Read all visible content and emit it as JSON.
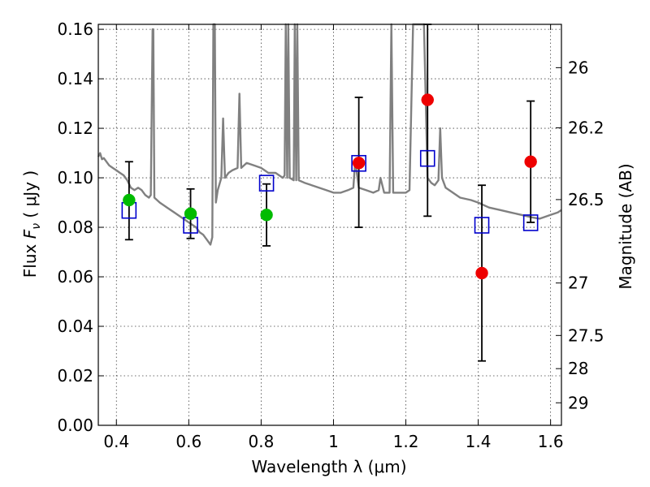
{
  "chart_data": {
    "type": "scatter",
    "xlabel": "Wavelength  λ (μm)",
    "ylabel": "Flux  F_ν  ( μJy )",
    "ylabel_prefix": "Flux  ",
    "ylabel_symbol": "F",
    "ylabel_subscript": "ν",
    "ylabel_units": "  ( μJy )",
    "y2label": "Magnitude (AB)",
    "xlim": [
      0.35,
      1.63
    ],
    "ylim": [
      0.0,
      0.162
    ],
    "x_ticks": [
      0.4,
      0.6,
      0.8,
      1.0,
      1.2,
      1.4,
      1.6
    ],
    "x_tick_labels": [
      "0.4",
      "0.6",
      "0.8",
      "1",
      "1.2",
      "1.4",
      "1.6"
    ],
    "y_ticks": [
      0.0,
      0.02,
      0.04,
      0.06,
      0.08,
      0.1,
      0.12,
      0.14,
      0.16
    ],
    "y_tick_labels": [
      "0.00",
      "0.02",
      "0.04",
      "0.06",
      "0.08",
      "0.10",
      "0.12",
      "0.14",
      "0.16"
    ],
    "y2_ticks": [
      {
        "label": "26",
        "flux": 0.1445
      },
      {
        "label": "26.2",
        "flux": 0.1202
      },
      {
        "label": "26.5",
        "flux": 0.0912
      },
      {
        "label": "27",
        "flux": 0.0575
      },
      {
        "label": "27.5",
        "flux": 0.0363
      },
      {
        "label": "28",
        "flux": 0.0229
      },
      {
        "label": "29",
        "flux": 0.0091
      }
    ],
    "colors": {
      "model": "#808080",
      "error_bar": "#000000",
      "model_photometry": "#0000cc",
      "optical_detection": "#00bb00",
      "nir_detection": "#ee0000"
    },
    "series": [
      {
        "name": "model spectrum",
        "style": "line",
        "points": [
          [
            0.35,
            0.1085
          ],
          [
            0.355,
            0.11
          ],
          [
            0.36,
            0.1075
          ],
          [
            0.365,
            0.108
          ],
          [
            0.37,
            0.107
          ],
          [
            0.38,
            0.105
          ],
          [
            0.39,
            0.104
          ],
          [
            0.4,
            0.103
          ],
          [
            0.41,
            0.102
          ],
          [
            0.42,
            0.101
          ],
          [
            0.43,
            0.099
          ],
          [
            0.44,
            0.096
          ],
          [
            0.45,
            0.095
          ],
          [
            0.46,
            0.096
          ],
          [
            0.47,
            0.095
          ],
          [
            0.48,
            0.093
          ],
          [
            0.49,
            0.092
          ],
          [
            0.495,
            0.093
          ],
          [
            0.5,
            0.16
          ],
          [
            0.502,
            0.16
          ],
          [
            0.505,
            0.092
          ],
          [
            0.52,
            0.09
          ],
          [
            0.54,
            0.088
          ],
          [
            0.56,
            0.086
          ],
          [
            0.58,
            0.084
          ],
          [
            0.6,
            0.082
          ],
          [
            0.61,
            0.081
          ],
          [
            0.62,
            0.08
          ],
          [
            0.63,
            0.078
          ],
          [
            0.64,
            0.077
          ],
          [
            0.65,
            0.075
          ],
          [
            0.655,
            0.074
          ],
          [
            0.66,
            0.073
          ],
          [
            0.665,
            0.076
          ],
          [
            0.668,
            0.162
          ],
          [
            0.672,
            0.162
          ],
          [
            0.675,
            0.09
          ],
          [
            0.68,
            0.095
          ],
          [
            0.69,
            0.1
          ],
          [
            0.695,
            0.124
          ],
          [
            0.7,
            0.1
          ],
          [
            0.71,
            0.102
          ],
          [
            0.72,
            0.103
          ],
          [
            0.735,
            0.104
          ],
          [
            0.74,
            0.134
          ],
          [
            0.745,
            0.104
          ],
          [
            0.76,
            0.106
          ],
          [
            0.78,
            0.105
          ],
          [
            0.8,
            0.104
          ],
          [
            0.82,
            0.102
          ],
          [
            0.84,
            0.102
          ],
          [
            0.86,
            0.1
          ],
          [
            0.865,
            0.101
          ],
          [
            0.868,
            0.162
          ],
          [
            0.872,
            0.1
          ],
          [
            0.875,
            0.162
          ],
          [
            0.879,
            0.1
          ],
          [
            0.89,
            0.099
          ],
          [
            0.893,
            0.162
          ],
          [
            0.897,
            0.099
          ],
          [
            0.9,
            0.162
          ],
          [
            0.904,
            0.099
          ],
          [
            0.92,
            0.098
          ],
          [
            0.94,
            0.097
          ],
          [
            0.96,
            0.096
          ],
          [
            0.98,
            0.095
          ],
          [
            1.0,
            0.094
          ],
          [
            1.02,
            0.094
          ],
          [
            1.04,
            0.095
          ],
          [
            1.055,
            0.096
          ],
          [
            1.06,
            0.107
          ],
          [
            1.07,
            0.096
          ],
          [
            1.09,
            0.095
          ],
          [
            1.11,
            0.094
          ],
          [
            1.125,
            0.095
          ],
          [
            1.13,
            0.1
          ],
          [
            1.14,
            0.094
          ],
          [
            1.155,
            0.094
          ],
          [
            1.16,
            0.162
          ],
          [
            1.165,
            0.094
          ],
          [
            1.18,
            0.094
          ],
          [
            1.2,
            0.094
          ],
          [
            1.21,
            0.095
          ],
          [
            1.22,
            0.162
          ],
          [
            1.25,
            0.162
          ],
          [
            1.26,
            0.1
          ],
          [
            1.27,
            0.098
          ],
          [
            1.28,
            0.097
          ],
          [
            1.29,
            0.099
          ],
          [
            1.295,
            0.12
          ],
          [
            1.3,
            0.1
          ],
          [
            1.31,
            0.096
          ],
          [
            1.33,
            0.094
          ],
          [
            1.35,
            0.092
          ],
          [
            1.38,
            0.091
          ],
          [
            1.4,
            0.09
          ],
          [
            1.43,
            0.088
          ],
          [
            1.46,
            0.087
          ],
          [
            1.49,
            0.086
          ],
          [
            1.52,
            0.085
          ],
          [
            1.55,
            0.084
          ],
          [
            1.57,
            0.0835
          ],
          [
            1.58,
            0.084
          ],
          [
            1.6,
            0.085
          ],
          [
            1.62,
            0.086
          ],
          [
            1.63,
            0.087
          ]
        ]
      },
      {
        "name": "model photometry",
        "style": "open-square",
        "x": [
          0.435,
          0.605,
          0.815,
          1.07,
          1.26,
          1.41,
          1.545
        ],
        "y": [
          0.087,
          0.081,
          0.098,
          0.106,
          0.108,
          0.081,
          0.082
        ]
      },
      {
        "name": "optical detections",
        "style": "filled-circle",
        "x": [
          0.435,
          0.605,
          0.815
        ],
        "y": [
          0.091,
          0.0855,
          0.085
        ]
      },
      {
        "name": "near-IR detections",
        "style": "filled-circle",
        "x": [
          1.07,
          1.26,
          1.41,
          1.545
        ],
        "y": [
          0.106,
          0.1315,
          0.0615,
          0.1065
        ]
      },
      {
        "name": "error bars",
        "style": "errorbar",
        "x": [
          0.435,
          0.605,
          0.815,
          1.07,
          1.26,
          1.41,
          1.545
        ],
        "y_low": [
          0.075,
          0.0755,
          0.0725,
          0.08,
          0.0845,
          0.026,
          0.082
        ],
        "y_high": [
          0.1065,
          0.0955,
          0.0975,
          0.1325,
          0.162,
          0.097,
          0.131
        ]
      }
    ]
  }
}
